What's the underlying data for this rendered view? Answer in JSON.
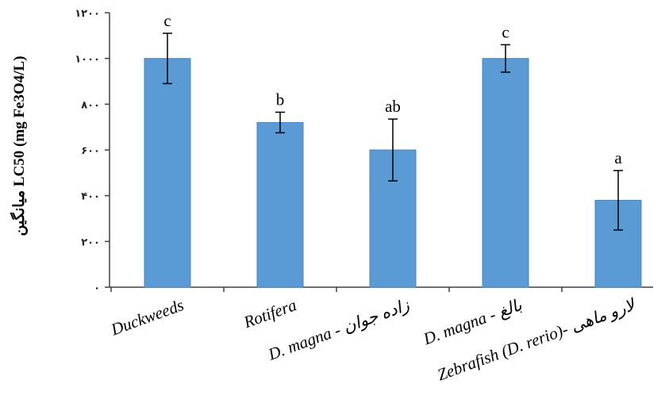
{
  "chart_data": {
    "type": "bar",
    "title": "",
    "xlabel": "",
    "ylabel": "میانگین LC50 (mg Fe3O4/L)",
    "ylim": [
      0,
      1200
    ],
    "y_ticks": [
      0,
      200,
      400,
      600,
      800,
      1000,
      1200
    ],
    "y_tick_labels": [
      "۰",
      "۲۰۰",
      "۴۰۰",
      "۶۰۰",
      "۸۰۰",
      "۱۰۰۰",
      "۱۲۰۰"
    ],
    "categories": [
      "Duckweeds",
      "Rotifera",
      "D. magna - زاده جوان",
      "D. magna - بالغ",
      "Zebrafish (D. rerio)- لارو ماهی"
    ],
    "values": [
      1000,
      720,
      600,
      1000,
      380
    ],
    "errors": [
      110,
      45,
      135,
      60,
      130
    ],
    "significance": [
      "c",
      "b",
      "ab",
      "c",
      "a"
    ],
    "bar_color": "#5b9bd5",
    "bar_edge_color": "#4a86be",
    "grid": false,
    "legend": "none"
  }
}
